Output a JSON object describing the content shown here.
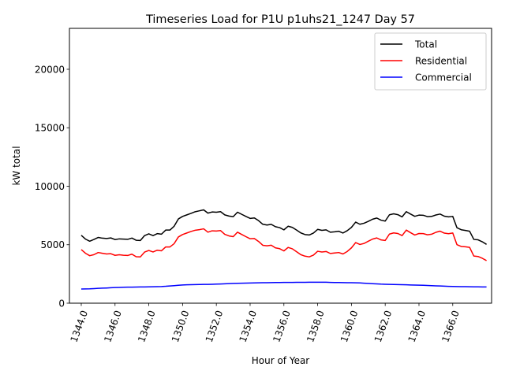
{
  "chart_data": {
    "type": "line",
    "title": "Timeseries Load for P1U p1uhs21_1247  Day 57",
    "xlabel": "Hour of Year",
    "ylabel": "kW total",
    "xlim": [
      1343.3,
      1368.3
    ],
    "ylim": [
      0,
      23500
    ],
    "x_ticks": [
      1344,
      1346,
      1348,
      1350,
      1352,
      1354,
      1356,
      1358,
      1360,
      1362,
      1364,
      1366
    ],
    "x_tick_labels": [
      "1344.0",
      "1346.0",
      "1348.0",
      "1350.0",
      "1352.0",
      "1354.0",
      "1356.0",
      "1358.0",
      "1360.0",
      "1362.0",
      "1364.0",
      "1366.0"
    ],
    "y_ticks": [
      0,
      5000,
      10000,
      15000,
      20000
    ],
    "y_tick_labels": [
      "0",
      "5000",
      "10000",
      "15000",
      "20000"
    ],
    "x_tick_rotation_deg": 70,
    "grid": false,
    "legend_position": "upper right",
    "x_start": 1344,
    "x_step": 0.25,
    "series": [
      {
        "name": "Total",
        "color": "#000000",
        "values": [
          5800,
          5480,
          5300,
          5450,
          5620,
          5560,
          5530,
          5580,
          5440,
          5500,
          5480,
          5460,
          5570,
          5380,
          5360,
          5780,
          5930,
          5780,
          5950,
          5900,
          6250,
          6250,
          6580,
          7200,
          7420,
          7550,
          7680,
          7820,
          7900,
          7980,
          7700,
          7800,
          7780,
          7830,
          7550,
          7450,
          7400,
          7780,
          7600,
          7420,
          7250,
          7290,
          7060,
          6750,
          6680,
          6740,
          6540,
          6460,
          6270,
          6580,
          6480,
          6250,
          6010,
          5870,
          5830,
          6000,
          6310,
          6230,
          6270,
          6070,
          6100,
          6150,
          6000,
          6200,
          6480,
          6930,
          6750,
          6840,
          7000,
          7180,
          7280,
          7100,
          7020,
          7560,
          7640,
          7570,
          7380,
          7830,
          7620,
          7430,
          7530,
          7520,
          7400,
          7420,
          7540,
          7620,
          7440,
          7380,
          7420,
          6450,
          6280,
          6220,
          6150,
          5450,
          5420,
          5250,
          5030
        ]
      },
      {
        "name": "Residential",
        "color": "#ff0000",
        "values": [
          4580,
          4270,
          4060,
          4150,
          4330,
          4270,
          4210,
          4230,
          4090,
          4140,
          4100,
          4080,
          4190,
          3970,
          3960,
          4370,
          4510,
          4380,
          4530,
          4480,
          4810,
          4810,
          5090,
          5660,
          5870,
          6000,
          6130,
          6240,
          6290,
          6360,
          6070,
          6190,
          6170,
          6210,
          5890,
          5750,
          5690,
          6070,
          5880,
          5690,
          5510,
          5530,
          5280,
          4950,
          4910,
          4960,
          4730,
          4660,
          4470,
          4770,
          4650,
          4400,
          4150,
          4020,
          3960,
          4110,
          4440,
          4380,
          4420,
          4250,
          4290,
          4330,
          4210,
          4420,
          4730,
          5180,
          5020,
          5110,
          5300,
          5480,
          5580,
          5410,
          5360,
          5910,
          6010,
          5960,
          5780,
          6250,
          6030,
          5830,
          5960,
          5950,
          5850,
          5900,
          6060,
          6160,
          5990,
          5940,
          6000,
          5000,
          4850,
          4820,
          4770,
          4030,
          3990,
          3840,
          3640
        ]
      },
      {
        "name": "Commercial",
        "color": "#0000ff",
        "values": [
          1210,
          1220,
          1230,
          1250,
          1270,
          1285,
          1300,
          1320,
          1335,
          1345,
          1360,
          1370,
          1375,
          1380,
          1385,
          1390,
          1400,
          1405,
          1415,
          1425,
          1445,
          1475,
          1500,
          1530,
          1555,
          1570,
          1580,
          1590,
          1600,
          1605,
          1610,
          1620,
          1630,
          1645,
          1660,
          1675,
          1690,
          1700,
          1705,
          1715,
          1725,
          1735,
          1745,
          1750,
          1755,
          1760,
          1765,
          1770,
          1775,
          1778,
          1780,
          1782,
          1785,
          1788,
          1790,
          1792,
          1793,
          1792,
          1790,
          1780,
          1770,
          1765,
          1760,
          1755,
          1748,
          1740,
          1730,
          1710,
          1690,
          1670,
          1650,
          1630,
          1620,
          1610,
          1600,
          1590,
          1580,
          1570,
          1560,
          1550,
          1540,
          1530,
          1515,
          1500,
          1485,
          1470,
          1455,
          1440,
          1430,
          1420,
          1415,
          1410,
          1405,
          1400,
          1395,
          1390,
          1385
        ]
      }
    ]
  }
}
